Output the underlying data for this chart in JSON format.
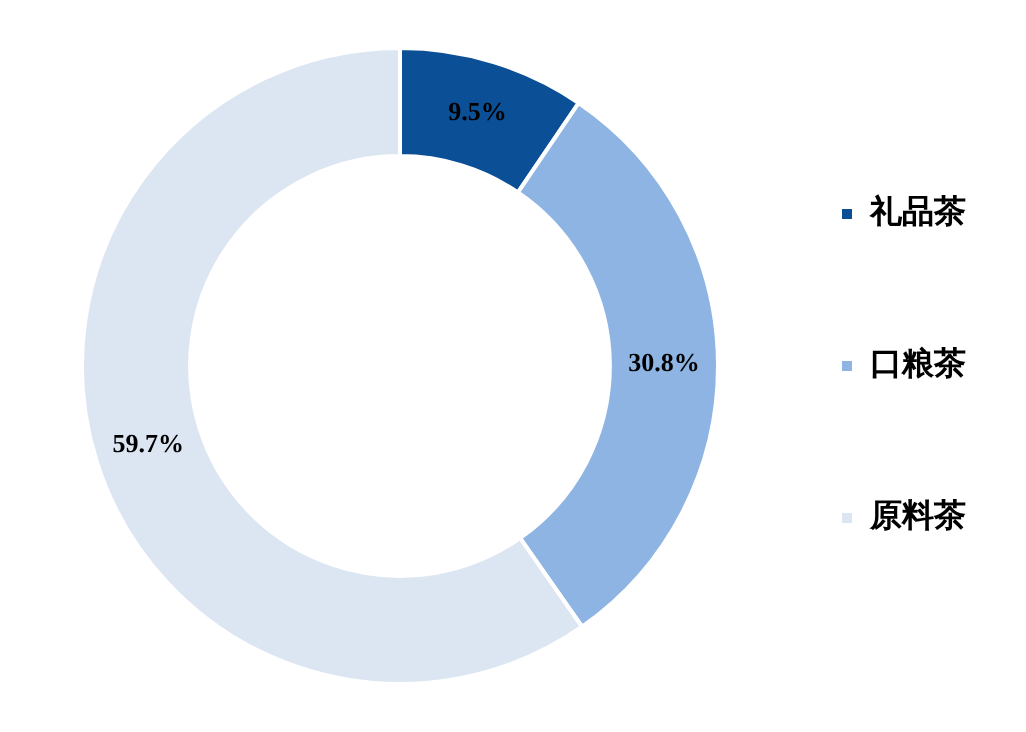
{
  "chart_data": {
    "type": "donut",
    "categories": [
      "礼品茶",
      "口粮茶",
      "原料茶"
    ],
    "values": [
      9.5,
      30.8,
      59.7
    ],
    "colors": [
      "#0b4f96",
      "#8eb4e3",
      "#dce6f2"
    ],
    "value_labels": [
      "9.5%",
      "30.8%",
      "59.7%"
    ],
    "legend": "right"
  }
}
